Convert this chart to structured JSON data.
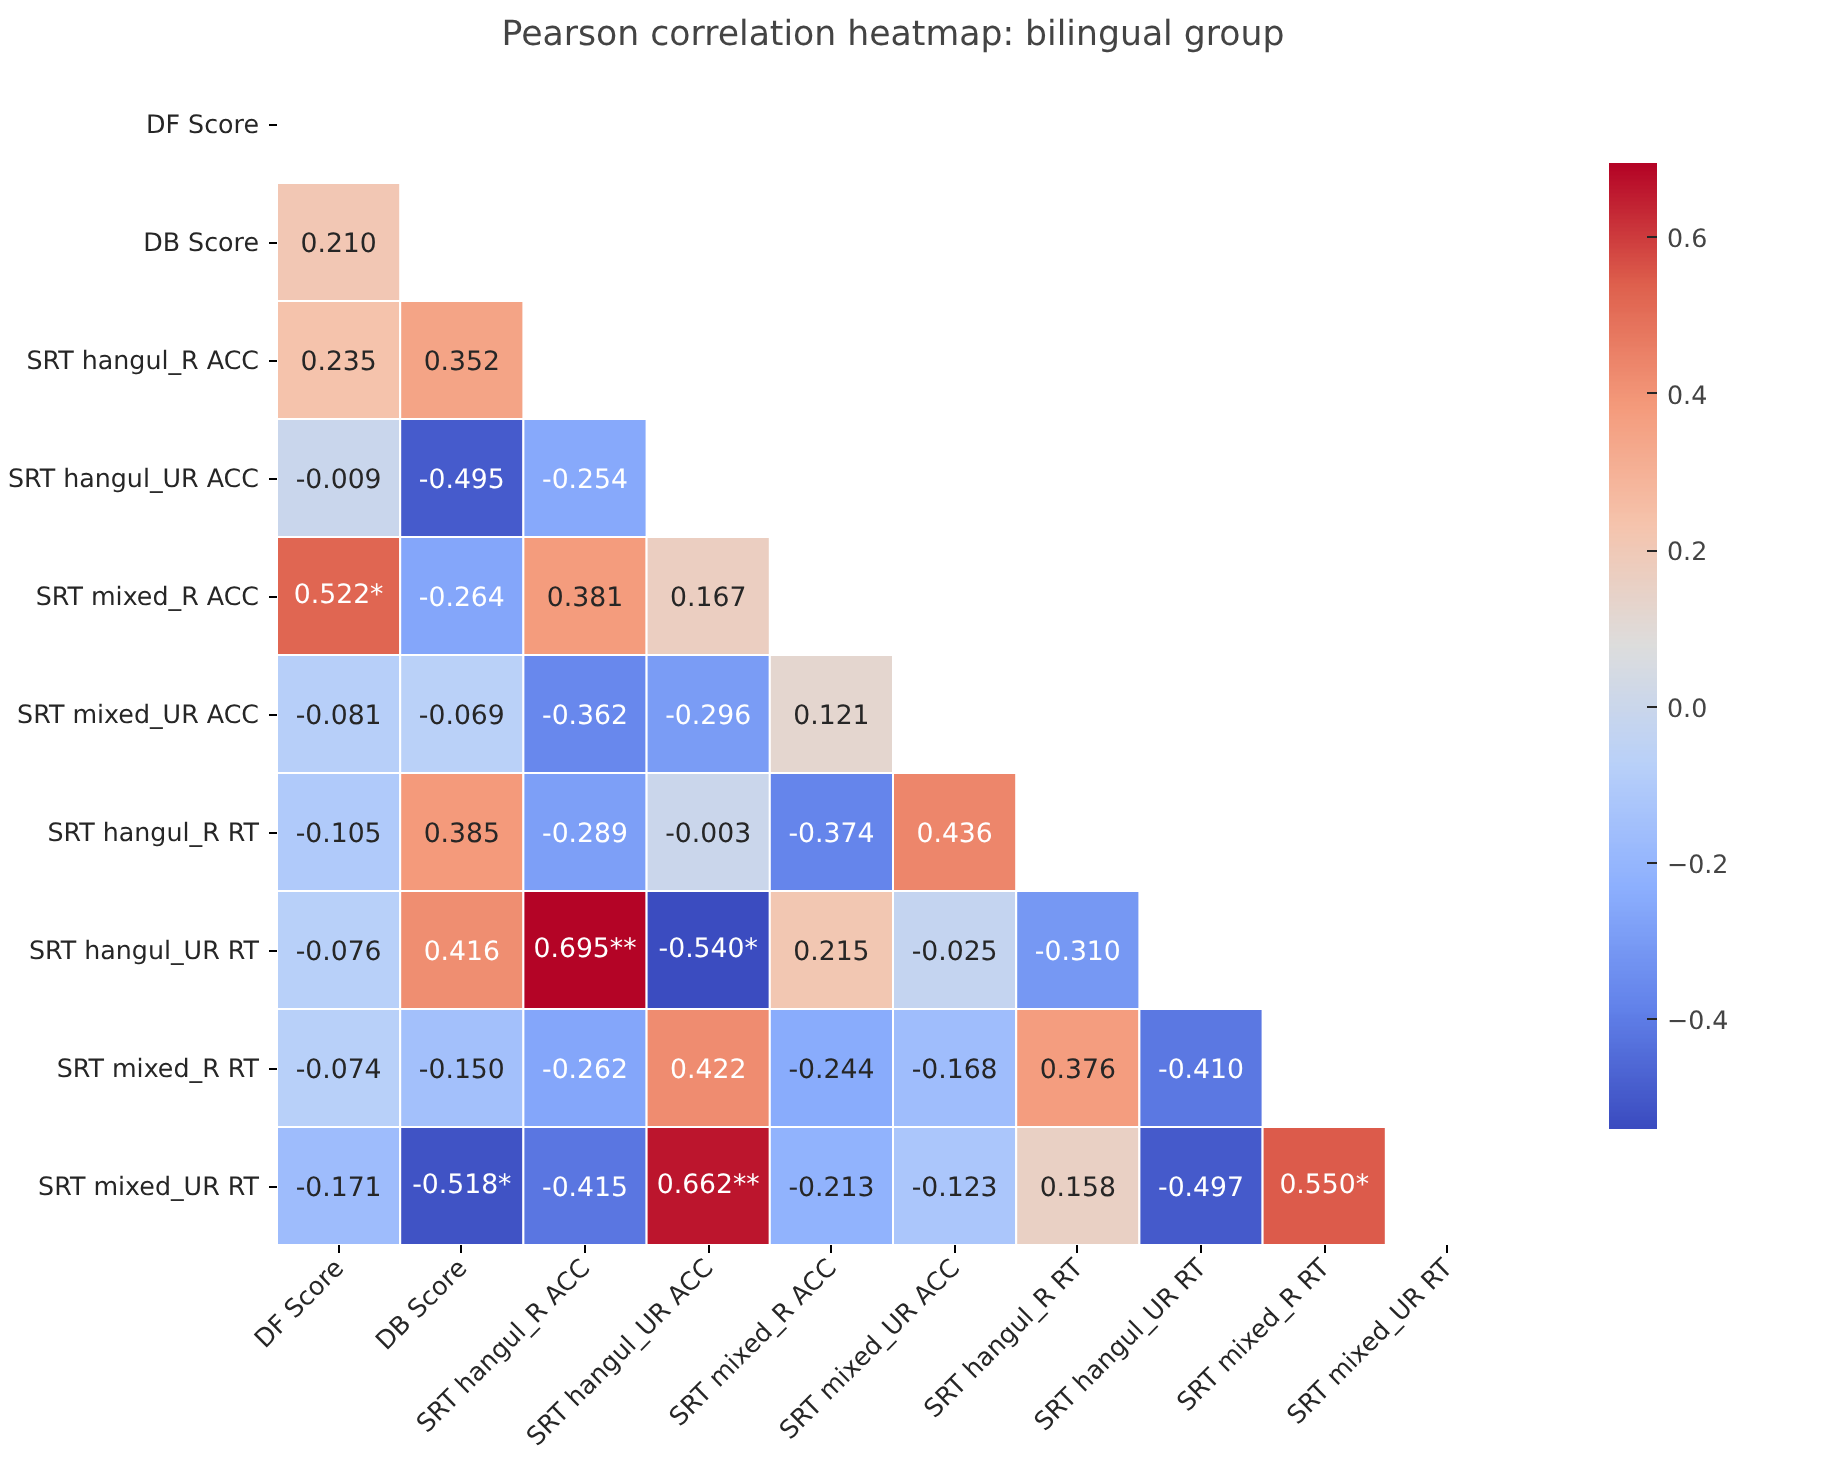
{
  "chart_data": {
    "type": "heatmap",
    "title": "Pearson correlation heatmap: bilingual group",
    "categories": [
      "DF Score",
      "DB Score",
      "SRT hangul_R ACC",
      "SRT hangul_UR ACC",
      "SRT mixed_R ACC",
      "SRT mixed_UR ACC",
      "SRT hangul_R RT",
      "SRT hangul_UR RT",
      "SRT mixed_R RT",
      "SRT mixed_UR RT"
    ],
    "y_categories": [
      "DF Score",
      "DB Score",
      "SRT hangul_R ACC",
      "SRT hangul_UR ACC",
      "SRT mixed_R ACC",
      "SRT mixed_UR ACC",
      "SRT hangul_R RT",
      "SRT hangul_UR RT",
      "SRT mixed_R RT",
      "SRT mixed_UR RT"
    ],
    "cells": [
      [
        null,
        null,
        null,
        null,
        null,
        null,
        null,
        null,
        null,
        null
      ],
      [
        0.21,
        null,
        null,
        null,
        null,
        null,
        null,
        null,
        null,
        null
      ],
      [
        0.235,
        0.352,
        null,
        null,
        null,
        null,
        null,
        null,
        null,
        null
      ],
      [
        -0.009,
        -0.495,
        -0.254,
        null,
        null,
        null,
        null,
        null,
        null,
        null
      ],
      [
        0.522,
        -0.264,
        0.381,
        0.167,
        null,
        null,
        null,
        null,
        null,
        null
      ],
      [
        -0.081,
        -0.069,
        -0.362,
        -0.296,
        0.121,
        null,
        null,
        null,
        null,
        null
      ],
      [
        -0.105,
        0.385,
        -0.289,
        -0.003,
        -0.374,
        0.436,
        null,
        null,
        null,
        null
      ],
      [
        -0.076,
        0.416,
        0.695,
        -0.54,
        0.215,
        -0.025,
        -0.31,
        null,
        null,
        null
      ],
      [
        -0.074,
        -0.15,
        -0.262,
        0.422,
        -0.244,
        -0.168,
        0.376,
        -0.41,
        null,
        null
      ],
      [
        -0.171,
        -0.518,
        -0.415,
        0.662,
        -0.213,
        -0.123,
        0.158,
        -0.497,
        0.55,
        null
      ]
    ],
    "cell_labels": [
      [
        null,
        null,
        null,
        null,
        null,
        null,
        null,
        null,
        null,
        null
      ],
      [
        "0.210",
        null,
        null,
        null,
        null,
        null,
        null,
        null,
        null,
        null
      ],
      [
        "0.235",
        "0.352",
        null,
        null,
        null,
        null,
        null,
        null,
        null,
        null
      ],
      [
        "-0.009",
        "-0.495",
        "-0.254",
        null,
        null,
        null,
        null,
        null,
        null,
        null
      ],
      [
        "0.522*",
        "-0.264",
        "0.381",
        "0.167",
        null,
        null,
        null,
        null,
        null,
        null
      ],
      [
        "-0.081",
        "-0.069",
        "-0.362",
        "-0.296",
        "0.121",
        null,
        null,
        null,
        null,
        null
      ],
      [
        "-0.105",
        "0.385",
        "-0.289",
        "-0.003",
        "-0.374",
        "0.436",
        null,
        null,
        null,
        null
      ],
      [
        "-0.076",
        "0.416",
        "0.695**",
        "-0.540*",
        "0.215",
        "-0.025",
        "-0.310",
        null,
        null,
        null
      ],
      [
        "-0.074",
        "-0.150",
        "-0.262",
        "0.422",
        "-0.244",
        "-0.168",
        "0.376",
        "-0.410",
        null,
        null
      ],
      [
        "-0.171",
        "-0.518*",
        "-0.415",
        "0.662**",
        "-0.213",
        "-0.123",
        "0.158",
        "-0.497",
        "0.550*",
        null
      ]
    ],
    "clim": [
      -0.54,
      0.695
    ],
    "cticks": [
      {
        "value": -0.4,
        "label": "−0.4"
      },
      {
        "value": -0.2,
        "label": "−0.2"
      },
      {
        "value": 0.0,
        "label": "0.0"
      },
      {
        "value": 0.2,
        "label": "0.2"
      },
      {
        "value": 0.4,
        "label": "0.4"
      },
      {
        "value": 0.6,
        "label": "0.6"
      }
    ]
  }
}
